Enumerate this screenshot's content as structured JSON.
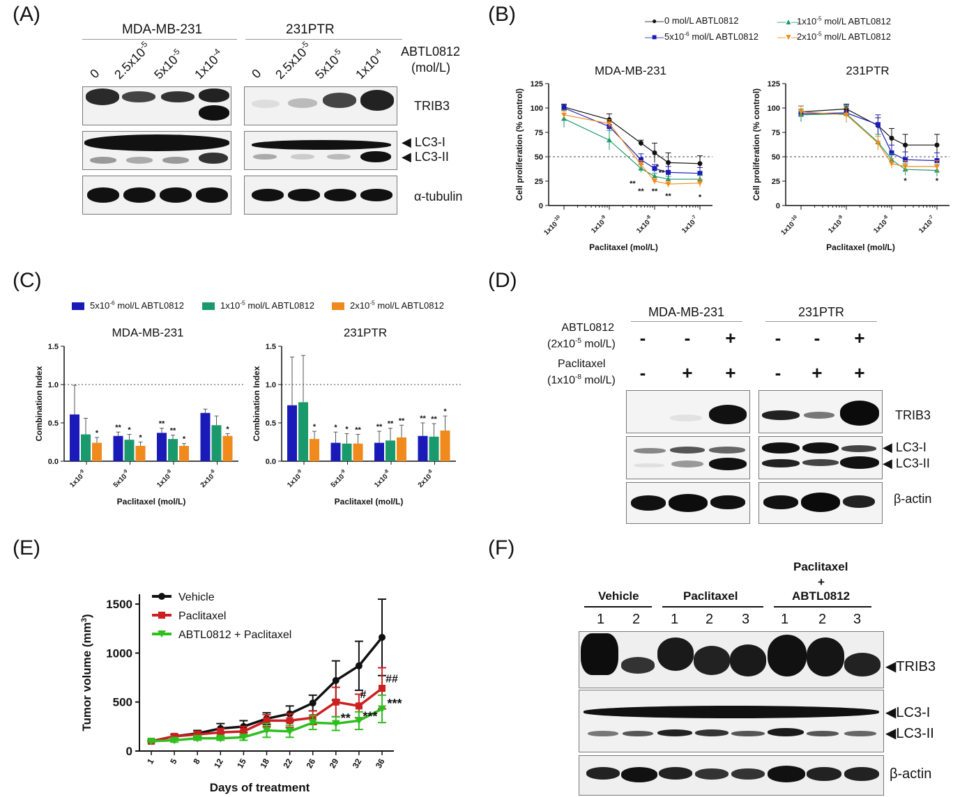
{
  "panels": {
    "A": {
      "label": "(A)",
      "groups": [
        "MDA-MB-231",
        "231PTR"
      ],
      "doses": [
        "0",
        "2.5x10",
        "5x10",
        "1x10"
      ],
      "dose_exps": [
        "",
        "-5",
        "-5",
        "-4"
      ],
      "drug_label_line1": "ABTL0812",
      "drug_label_line2": "(mol/L)",
      "blots": [
        "TRIB3",
        "LC3-I",
        "LC3-II",
        "α-tubulin"
      ]
    },
    "B": {
      "label": "(B)",
      "legend": [
        {
          "pre": "0 mol/L ABTL0812",
          "exp": "",
          "post": "",
          "color": "#111111",
          "marker": "circle"
        },
        {
          "pre": "5x10",
          "exp": "-6",
          "post": " mol/L ABTL0812",
          "color": "#1a1ab8",
          "marker": "square"
        },
        {
          "pre": "1x10",
          "exp": "-5",
          "post": " mol/L ABTL0812",
          "color": "#1a9a6c",
          "marker": "triangle"
        },
        {
          "pre": "2x10",
          "exp": "-5",
          "post": " mol/L ABTL0812",
          "color": "#f08a1c",
          "marker": "tri-down"
        }
      ],
      "ylabel": "Cell proliferation (% control)",
      "xlabel": "Paclitaxel (mol/L)",
      "xticks": [
        "1x10",
        "1x10",
        "1x10",
        "1x10"
      ],
      "xtick_exps": [
        "-10",
        "-9",
        "-8",
        "-7"
      ],
      "yticks": [
        "0",
        "25",
        "50",
        "75",
        "100",
        "125"
      ]
    },
    "C": {
      "label": "(C)",
      "legend": [
        {
          "pre": "5x10",
          "exp": "-6",
          "post": " mol/L ABTL0812",
          "color": "#1a1ab8"
        },
        {
          "pre": "1x10",
          "exp": "-5",
          "post": " mol/L ABTL0812",
          "color": "#1a9a6c"
        },
        {
          "pre": "2x10",
          "exp": "-5",
          "post": " mol/L ABTL0812",
          "color": "#f08a1c"
        }
      ],
      "ylabel": "Combination Index",
      "xlabel": "Paclitaxel (mol/L)",
      "xticks": [
        "1x10",
        "5x10",
        "1x10",
        "2x10"
      ],
      "xtick_exps": [
        "-9",
        "-9",
        "-8",
        "-8"
      ],
      "yticks": [
        "0.0",
        "0.5",
        "1.0",
        "1.5"
      ]
    },
    "D": {
      "label": "(D)",
      "groups": [
        "MDA-MB-231",
        "231PTR"
      ],
      "row1_line1": "ABTL0812",
      "row1_line2_pre": "(2x10",
      "row1_line2_exp": "-5",
      "row1_line2_post": " mol/L)",
      "row2_line1": "Paclitaxel",
      "row2_line2_pre": "(1x10",
      "row2_line2_exp": "-8",
      "row2_line2_post": " mol/L)",
      "row1_signs": [
        "-",
        "-",
        "+",
        "-",
        "-",
        "+"
      ],
      "row2_signs": [
        "-",
        "+",
        "+",
        "-",
        "+",
        "+"
      ],
      "blots": [
        "TRIB3",
        "LC3-I",
        "LC3-II",
        "β-actin"
      ]
    },
    "E": {
      "label": "(E)",
      "ylabel": "Tumor volume (mm",
      "ylabel_exp": "3",
      "ylabel_post": ")",
      "xlabel": "Days of treatment",
      "yticks": [
        "0",
        "500",
        "1000",
        "1500"
      ],
      "annotations": {
        "hash1": "#",
        "hash2": "##",
        "star2": "**",
        "star3a": "***",
        "star3b": "***"
      }
    },
    "F": {
      "label": "(F)",
      "groups": [
        "Vehicle",
        "Paclitaxel",
        "Paclitaxel",
        "+",
        "ABTL0812"
      ],
      "lanes": [
        "1",
        "2",
        "1",
        "2",
        "3",
        "1",
        "2",
        "3"
      ],
      "blots": [
        "TRIB3",
        "LC3-I",
        "LC3-II",
        "β-actin"
      ]
    }
  },
  "chart_data": [
    {
      "id": "B-MDA-MB-231",
      "type": "line",
      "title": "MDA-MB-231",
      "xlabel": "Paclitaxel (mol/L)",
      "ylabel": "Cell proliferation (% control)",
      "x_scale": "log",
      "x": [
        1e-10,
        1e-09,
        5e-09,
        1e-08,
        2e-08,
        1e-07
      ],
      "ylim": [
        0,
        125
      ],
      "reference_line": 50,
      "series": [
        {
          "name": "0 mol/L ABTL0812",
          "color": "#111111",
          "values": [
            101,
            88,
            64,
            54,
            44,
            43
          ],
          "err": [
            3,
            6,
            3,
            10,
            10,
            8
          ]
        },
        {
          "name": "5x10-6 mol/L ABTL0812",
          "color": "#1a1ab8",
          "values": [
            100,
            81,
            47,
            38,
            34,
            33
          ],
          "err": [
            3,
            5,
            6,
            4,
            6,
            6
          ]
        },
        {
          "name": "1x10-5 mol/L ABTL0812",
          "color": "#1a9a6c",
          "values": [
            89,
            67,
            38,
            30,
            27,
            27
          ],
          "err": [
            9,
            10,
            4,
            3,
            3,
            4
          ]
        },
        {
          "name": "2x10-5 mol/L ABTL0812",
          "color": "#f08a1c",
          "values": [
            93,
            84,
            42,
            25,
            22,
            23
          ],
          "err": [
            4,
            4,
            4,
            3,
            3,
            4
          ]
        }
      ],
      "significance": [
        "**",
        "**",
        "*",
        "**",
        "**",
        "**",
        "*"
      ]
    },
    {
      "id": "B-231PTR",
      "type": "line",
      "title": "231PTR",
      "xlabel": "Paclitaxel (mol/L)",
      "ylabel": "Cell proliferation (% control)",
      "x_scale": "log",
      "x": [
        1e-10,
        1e-09,
        5e-09,
        1e-08,
        2e-08,
        1e-07
      ],
      "ylim": [
        0,
        125
      ],
      "reference_line": 50,
      "series": [
        {
          "name": "0 mol/L ABTL0812",
          "color": "#111111",
          "values": [
            96,
            99,
            82,
            69,
            62,
            62
          ],
          "err": [
            6,
            5,
            8,
            10,
            11,
            11
          ]
        },
        {
          "name": "5x10-6 mol/L ABTL0812",
          "color": "#1a1ab8",
          "values": [
            94,
            95,
            83,
            54,
            47,
            46
          ],
          "err": [
            8,
            7,
            10,
            8,
            8,
            8
          ]
        },
        {
          "name": "1x10-5 mol/L ABTL0812",
          "color": "#1a9a6c",
          "values": [
            93,
            94,
            65,
            47,
            37,
            36
          ],
          "err": [
            6,
            9,
            8,
            6,
            6,
            6
          ]
        },
        {
          "name": "2x10-5 mol/L ABTL0812",
          "color": "#f08a1c",
          "values": [
            96,
            93,
            64,
            43,
            40,
            40
          ],
          "err": [
            6,
            7,
            7,
            5,
            6,
            6
          ]
        }
      ],
      "significance": [
        "*",
        "*"
      ]
    },
    {
      "id": "C-MDA-MB-231",
      "type": "bar",
      "title": "MDA-MB-231",
      "xlabel": "Paclitaxel (mol/L)",
      "ylabel": "Combination Index",
      "categories": [
        "1x10-9",
        "5x10-9",
        "1x10-8",
        "2x10-8"
      ],
      "ylim": [
        0,
        1.5
      ],
      "reference_line": 1.0,
      "series": [
        {
          "name": "5x10-6 mol/L ABTL0812",
          "color": "#1a1ab8",
          "values": [
            0.61,
            0.33,
            0.37,
            0.63
          ],
          "err": [
            0.38,
            0.05,
            0.06,
            0.05
          ]
        },
        {
          "name": "1x10-5 mol/L ABTL0812",
          "color": "#1a9a6c",
          "values": [
            0.35,
            0.28,
            0.29,
            0.47
          ],
          "err": [
            0.21,
            0.07,
            0.05,
            0.12
          ]
        },
        {
          "name": "2x10-5 mol/L ABTL0812",
          "color": "#f08a1c",
          "values": [
            0.24,
            0.2,
            0.2,
            0.33
          ],
          "err": [
            0.07,
            0.05,
            0.03,
            0.03
          ]
        }
      ],
      "significance": [
        [
          "",
          "",
          "*"
        ],
        [
          "**",
          "*",
          "*"
        ],
        [
          "**",
          "**",
          "*"
        ],
        [
          "",
          "",
          "*"
        ]
      ]
    },
    {
      "id": "C-231PTR",
      "type": "bar",
      "title": "231PTR",
      "xlabel": "Paclitaxel (mol/L)",
      "ylabel": "Combination Index",
      "categories": [
        "1x10-9",
        "5x10-9",
        "1x10-8",
        "2x10-8"
      ],
      "ylim": [
        0,
        1.5
      ],
      "reference_line": 1.0,
      "series": [
        {
          "name": "5x10-6 mol/L ABTL0812",
          "color": "#1a1ab8",
          "values": [
            0.73,
            0.24,
            0.24,
            0.33
          ],
          "err": [
            0.63,
            0.14,
            0.15,
            0.17
          ]
        },
        {
          "name": "1x10-5 mol/L ABTL0812",
          "color": "#1a9a6c",
          "values": [
            0.77,
            0.23,
            0.27,
            0.32
          ],
          "err": [
            0.61,
            0.13,
            0.16,
            0.17
          ]
        },
        {
          "name": "2x10-5 mol/L ABTL0812",
          "color": "#f08a1c",
          "values": [
            0.29,
            0.23,
            0.31,
            0.4
          ],
          "err": [
            0.1,
            0.12,
            0.16,
            0.19
          ]
        }
      ],
      "significance": [
        [
          "",
          "",
          "*"
        ],
        [
          "*",
          "*",
          "**"
        ],
        [
          "**",
          "**",
          "**"
        ],
        [
          "**",
          "**",
          "*"
        ]
      ]
    },
    {
      "id": "E",
      "type": "line",
      "xlabel": "Days of treatment",
      "ylabel": "Tumor volume (mm3)",
      "categories": [
        "1",
        "5",
        "8",
        "12",
        "15",
        "18",
        "22",
        "26",
        "29",
        "32",
        "36"
      ],
      "ylim": [
        0,
        1600
      ],
      "series": [
        {
          "name": "Vehicle",
          "color": "#111111",
          "values": [
            100,
            150,
            180,
            230,
            250,
            330,
            380,
            490,
            720,
            870,
            1160
          ],
          "err": [
            10,
            20,
            30,
            50,
            60,
            60,
            80,
            80,
            200,
            250,
            390
          ]
        },
        {
          "name": "Paclitaxel",
          "color": "#cc1f1f",
          "values": [
            100,
            150,
            170,
            190,
            200,
            310,
            310,
            340,
            500,
            460,
            640
          ],
          "err": [
            10,
            20,
            30,
            40,
            50,
            60,
            70,
            70,
            150,
            120,
            210
          ]
        },
        {
          "name": "ABTL0812 + Paclitaxel",
          "color": "#2fbe1e",
          "values": [
            100,
            110,
            130,
            130,
            140,
            210,
            200,
            290,
            280,
            310,
            430
          ],
          "err": [
            10,
            20,
            20,
            20,
            30,
            70,
            60,
            70,
            70,
            90,
            140
          ]
        }
      ]
    }
  ]
}
